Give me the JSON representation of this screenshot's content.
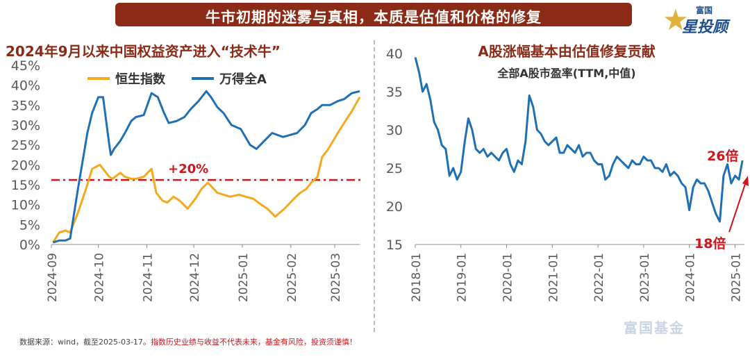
{
  "header": {
    "banner": "牛市初期的迷雾与真相，本质是估值和价格的修复",
    "logo_small": "富国",
    "logo_main": "星投顾"
  },
  "footer": {
    "source": "数据来源：wind，截至2025-03-17。",
    "warning": "指数历史业绩与收益不代表未来，基金有风险，投资须谨慎！"
  },
  "watermark": "富国基金",
  "colors": {
    "banner": "#8b2a17",
    "hsi": "#f5a81c",
    "wind_a": "#1f6fb4",
    "pe": "#1f6fb4",
    "threshold": "#d0141a",
    "annotation": "#d0141a"
  },
  "chart_data": [
    {
      "type": "line",
      "title": "2024年9月以来中国权益资产进入“技术牛”",
      "xlabel": "",
      "ylabel": "",
      "x_ticks": [
        "2024-09",
        "2024-10",
        "2024-11",
        "2024-12",
        "2025-01",
        "2025-02",
        "2025-03"
      ],
      "y_ticks": [
        "0%",
        "5%",
        "10%",
        "15%",
        "20%",
        "25%",
        "30%",
        "35%",
        "40%",
        "45%"
      ],
      "ylim": [
        0,
        45
      ],
      "legend_position": "top",
      "series": [
        {
          "name": "恒生指数",
          "x": [
            "2024-09-02",
            "2024-09-06",
            "2024-09-10",
            "2024-09-13",
            "2024-09-18",
            "2024-09-24",
            "2024-09-27",
            "2024-10-02",
            "2024-10-04",
            "2024-10-08",
            "2024-10-10",
            "2024-10-15",
            "2024-10-18",
            "2024-10-22",
            "2024-10-25",
            "2024-10-30",
            "2024-11-04",
            "2024-11-07",
            "2024-11-11",
            "2024-11-14",
            "2024-11-18",
            "2024-11-22",
            "2024-11-27",
            "2024-12-02",
            "2024-12-06",
            "2024-12-10",
            "2024-12-16",
            "2024-12-20",
            "2024-12-24",
            "2024-12-30",
            "2025-01-03",
            "2025-01-08",
            "2025-01-13",
            "2025-01-17",
            "2025-01-22",
            "2025-01-28",
            "2025-02-03",
            "2025-02-07",
            "2025-02-11",
            "2025-02-14",
            "2025-02-18",
            "2025-02-21",
            "2025-02-25",
            "2025-03-03",
            "2025-03-07",
            "2025-03-12",
            "2025-03-17"
          ],
          "values": [
            0.5,
            3.0,
            3.5,
            3.0,
            8.0,
            15.0,
            19.0,
            20.0,
            19.0,
            17.0,
            16.5,
            18.0,
            17.0,
            16.5,
            16.5,
            17.0,
            19.0,
            13.0,
            11.0,
            10.5,
            12.0,
            11.0,
            9.0,
            11.5,
            14.0,
            15.5,
            13.0,
            12.5,
            12.0,
            12.5,
            12.0,
            11.5,
            10.0,
            9.0,
            7.0,
            9.0,
            11.5,
            13.0,
            14.0,
            15.5,
            17.0,
            22.0,
            24.0,
            28.0,
            30.5,
            33.5,
            37.0
          ]
        },
        {
          "name": "万得全A",
          "x": [
            "2024-09-02",
            "2024-09-06",
            "2024-09-10",
            "2024-09-13",
            "2024-09-18",
            "2024-09-24",
            "2024-09-27",
            "2024-10-01",
            "2024-10-04",
            "2024-10-08",
            "2024-10-09",
            "2024-10-11",
            "2024-10-15",
            "2024-10-18",
            "2024-10-22",
            "2024-10-25",
            "2024-10-30",
            "2024-11-04",
            "2024-11-08",
            "2024-11-12",
            "2024-11-15",
            "2024-11-20",
            "2024-11-25",
            "2024-11-29",
            "2024-12-04",
            "2024-12-09",
            "2024-12-12",
            "2024-12-16",
            "2024-12-20",
            "2024-12-25",
            "2024-12-31",
            "2025-01-06",
            "2025-01-10",
            "2025-01-15",
            "2025-01-20",
            "2025-01-27",
            "2025-02-05",
            "2025-02-10",
            "2025-02-14",
            "2025-02-18",
            "2025-02-21",
            "2025-02-26",
            "2025-03-03",
            "2025-03-07",
            "2025-03-12",
            "2025-03-17"
          ],
          "values": [
            0.5,
            1.0,
            1.0,
            1.5,
            14.0,
            28.0,
            33.0,
            37.0,
            37.0,
            25.0,
            22.5,
            24.0,
            26.0,
            28.0,
            31.0,
            32.0,
            32.5,
            38.0,
            37.0,
            33.0,
            30.5,
            31.0,
            32.0,
            34.0,
            36.0,
            38.5,
            37.0,
            34.5,
            33.0,
            30.0,
            29.0,
            25.0,
            24.0,
            26.0,
            28.0,
            27.0,
            28.0,
            30.0,
            33.0,
            34.0,
            35.0,
            35.0,
            36.0,
            36.5,
            38.0,
            38.5
          ]
        }
      ],
      "reference_line": {
        "value": 16.2,
        "label": "+20%"
      }
    },
    {
      "type": "line",
      "title": "A股涨幅基本由估值修复贡献",
      "subtitle": "全部A股市盈率(TTM,中值)",
      "xlabel": "",
      "ylabel": "",
      "x_ticks": [
        "2018-01",
        "2019-01",
        "2020-01",
        "2021-01",
        "2022-01",
        "2023-01",
        "2024-01",
        "2025-01"
      ],
      "y_ticks": [
        "15",
        "20",
        "25",
        "30",
        "35",
        "40"
      ],
      "ylim": [
        15,
        40
      ],
      "series": [
        {
          "name": "",
          "x": [
            "2018-01",
            "2018-02",
            "2018-03",
            "2018-04",
            "2018-05",
            "2018-06",
            "2018-07",
            "2018-08",
            "2018-09",
            "2018-10",
            "2018-11",
            "2018-12",
            "2019-01",
            "2019-02",
            "2019-03",
            "2019-04",
            "2019-05",
            "2019-06",
            "2019-07",
            "2019-08",
            "2019-09",
            "2019-10",
            "2019-11",
            "2019-12",
            "2020-01",
            "2020-02",
            "2020-03",
            "2020-04",
            "2020-05",
            "2020-06",
            "2020-07",
            "2020-08",
            "2020-09",
            "2020-10",
            "2020-11",
            "2020-12",
            "2021-01",
            "2021-02",
            "2021-03",
            "2021-04",
            "2021-05",
            "2021-06",
            "2021-07",
            "2021-08",
            "2021-09",
            "2021-10",
            "2021-11",
            "2021-12",
            "2022-01",
            "2022-02",
            "2022-03",
            "2022-04",
            "2022-05",
            "2022-06",
            "2022-07",
            "2022-08",
            "2022-09",
            "2022-10",
            "2022-11",
            "2022-12",
            "2023-01",
            "2023-02",
            "2023-03",
            "2023-04",
            "2023-05",
            "2023-06",
            "2023-07",
            "2023-08",
            "2023-09",
            "2023-10",
            "2023-11",
            "2023-12",
            "2024-01",
            "2024-02",
            "2024-03",
            "2024-04",
            "2024-05",
            "2024-06",
            "2024-07",
            "2024-08",
            "2024-09",
            "2024-10",
            "2024-11",
            "2024-12",
            "2025-01",
            "2025-02",
            "2025-03"
          ],
          "values": [
            39.5,
            37.5,
            35.0,
            36.0,
            34.0,
            31.0,
            30.0,
            28.0,
            27.5,
            24.0,
            25.0,
            23.5,
            24.5,
            28.5,
            31.5,
            30.0,
            27.5,
            27.0,
            27.5,
            26.5,
            27.0,
            26.5,
            26.0,
            27.0,
            27.5,
            25.5,
            24.5,
            26.0,
            25.5,
            28.5,
            34.5,
            33.0,
            30.0,
            29.5,
            28.5,
            28.0,
            28.5,
            29.0,
            27.0,
            27.0,
            28.0,
            27.5,
            27.0,
            28.0,
            26.5,
            27.0,
            27.0,
            26.0,
            25.5,
            25.5,
            23.5,
            24.0,
            25.5,
            26.5,
            26.0,
            25.5,
            25.0,
            26.0,
            25.5,
            25.5,
            26.5,
            26.0,
            26.0,
            25.0,
            25.0,
            24.5,
            25.5,
            24.0,
            24.5,
            24.0,
            23.0,
            22.5,
            19.5,
            22.5,
            23.5,
            23.0,
            23.0,
            22.0,
            20.5,
            19.0,
            18.0,
            24.0,
            25.5,
            23.0,
            24.0,
            23.5,
            26.0
          ]
        }
      ],
      "annotations": [
        {
          "label": "26倍",
          "at": "2025-03"
        },
        {
          "label": "18倍",
          "at": "2024-09"
        }
      ]
    }
  ]
}
